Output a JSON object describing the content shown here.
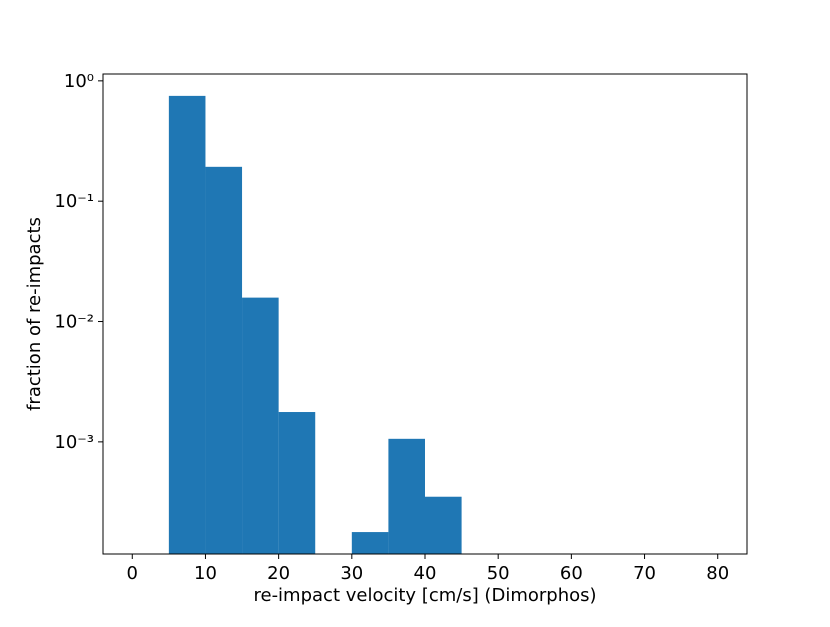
{
  "chart_data": {
    "type": "histogram",
    "xlabel": "re-impact velocity [cm/s] (Dimorphos)",
    "ylabel": "fraction of re-impacts",
    "bins": [
      0,
      5,
      10,
      15,
      20,
      25,
      30,
      35,
      40,
      45,
      50,
      55,
      60,
      65,
      70,
      75,
      80
    ],
    "values": [
      0,
      0.75,
      0.193,
      0.0158,
      0.00177,
      0,
      0.000178,
      0.00106,
      0.00035,
      0,
      0,
      0,
      0,
      0,
      0,
      0
    ],
    "color": "#1f77b4",
    "xlim": [
      -4,
      84
    ],
    "xticks": [
      0,
      10,
      20,
      30,
      40,
      50,
      60,
      70,
      80
    ],
    "ylim": [
      0.000117,
      1.14
    ],
    "yscale": "log",
    "yticks": [
      {
        "value": 1,
        "label": "10⁰"
      },
      {
        "value": 0.1,
        "label": "10⁻¹"
      },
      {
        "value": 0.01,
        "label": "10⁻²"
      },
      {
        "value": 0.001,
        "label": "10⁻³"
      }
    ]
  }
}
